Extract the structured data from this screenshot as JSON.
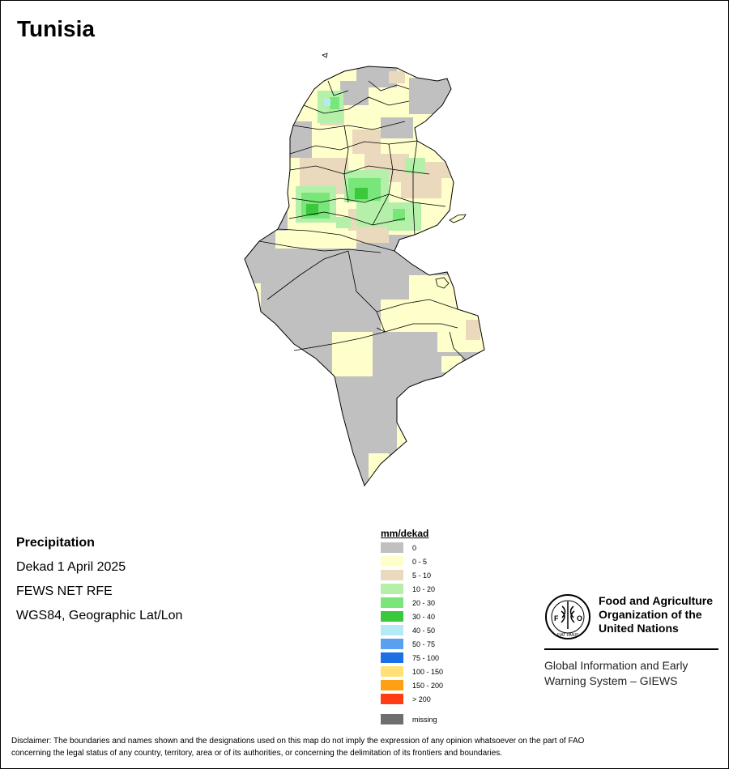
{
  "title": "Tunisia",
  "info": {
    "variable": "Precipitation",
    "period": "Dekad 1 April 2025",
    "source": "FEWS NET RFE",
    "projection": "WGS84, Geographic Lat/Lon"
  },
  "legend": {
    "title": "mm/dekad",
    "classes": [
      {
        "label": "0",
        "color": "#c0c0c0"
      },
      {
        "label": "0 - 5",
        "color": "#ffffcc"
      },
      {
        "label": "5 - 10",
        "color": "#ebd9bd"
      },
      {
        "label": "10 - 20",
        "color": "#b4f0aa"
      },
      {
        "label": "20 - 30",
        "color": "#78e678"
      },
      {
        "label": "30 - 40",
        "color": "#3cc83c"
      },
      {
        "label": "40 - 50",
        "color": "#b4eaf5"
      },
      {
        "label": "50 - 75",
        "color": "#5aa0f0"
      },
      {
        "label": "75 - 100",
        "color": "#1e6ee6"
      },
      {
        "label": "100 - 150",
        "color": "#ffe178"
      },
      {
        "label": "150 - 200",
        "color": "#ffa014"
      },
      {
        "label": "> 200",
        "color": "#ff3c14"
      }
    ],
    "missing": {
      "label": "missing",
      "color": "#6e6e6e"
    }
  },
  "organization": {
    "logo_text": "FAO",
    "logo_motto": "FIAT PANIS",
    "name_line1": "Food and Agriculture",
    "name_line2": "Organization of the",
    "name_line3": "United Nations",
    "system_line1": "Global Information and Early",
    "system_line2": "Warning System – GIEWS"
  },
  "disclaimer_line1": "Disclaimer: The boundaries and names shown and the designations used on this map do not imply the expression of any opinion whatsoever on the part of FAO",
  "disclaimer_line2": "concerning the legal status of any country, territory, area or of its authorities, or concerning the delimitation of its frontiers and boundaries."
}
